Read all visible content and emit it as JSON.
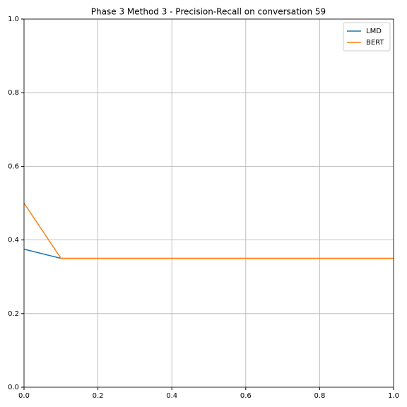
{
  "chart_data": {
    "type": "line",
    "title": "Phase 3 Method 3 - Precision-Recall on conversation 59",
    "x": [
      0,
      0.1,
      1
    ],
    "series": [
      {
        "name": "LMD",
        "color": "#1f77b4",
        "values": [
          0.375,
          0.35,
          0.35
        ]
      },
      {
        "name": "BERT",
        "color": "#ff7f0e",
        "values": [
          0.5,
          0.35,
          0.35
        ]
      }
    ],
    "xlim": [
      0,
      1
    ],
    "ylim": [
      0,
      1
    ],
    "xticks": [
      {
        "value": 0,
        "label": "0.0"
      },
      0.2,
      0.4,
      0.6,
      0.8,
      {
        "value": 1,
        "label": "1.0"
      }
    ],
    "yticks": [
      {
        "value": 0,
        "label": "0.0"
      },
      0.2,
      0.4,
      0.6,
      0.8,
      {
        "value": 1,
        "label": "1.0"
      }
    ],
    "grid": true,
    "legend": "upper-right"
  }
}
